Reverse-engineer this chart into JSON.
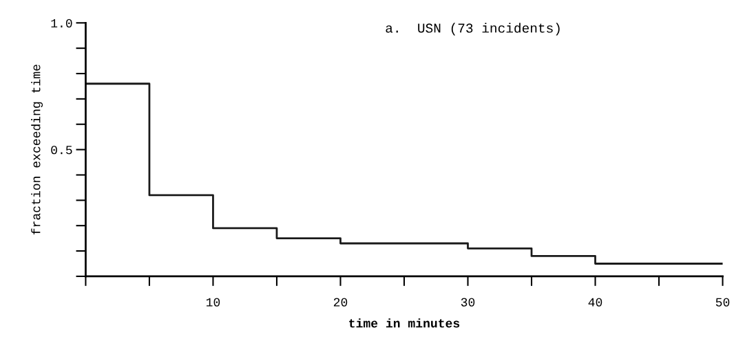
{
  "chart_data": {
    "type": "step",
    "title": "a.  USN (73 incidents)",
    "xlabel": "time in minutes",
    "ylabel": "fraction exceeding time",
    "x": [
      0,
      5,
      10,
      15,
      20,
      30,
      35,
      40,
      50
    ],
    "series": [
      {
        "color": "#1a1a1a",
        "values": [
          0.76,
          0.32,
          0.19,
          0.15,
          0.13,
          0.11,
          0.08,
          0.05,
          0.05
        ]
      }
    ],
    "xlim": [
      0,
      50
    ],
    "ylim": [
      0,
      1.0
    ],
    "xticks": [
      {
        "value": 0,
        "label": null
      },
      {
        "value": 5,
        "label": null
      },
      10,
      {
        "value": 15,
        "label": null
      },
      20,
      {
        "value": 25,
        "label": null
      },
      30,
      {
        "value": 35,
        "label": null
      },
      40,
      {
        "value": 45,
        "label": null
      },
      50
    ],
    "yticks": [
      {
        "value": 0,
        "label": null
      },
      {
        "value": 0.1,
        "label": null
      },
      {
        "value": 0.2,
        "label": null
      },
      {
        "value": 0.3,
        "label": null
      },
      {
        "value": 0.4,
        "label": null
      },
      {
        "value": 0.5,
        "label": "0.5"
      },
      {
        "value": 0.6,
        "label": null
      },
      {
        "value": 0.7,
        "label": null
      },
      {
        "value": 0.8,
        "label": null
      },
      {
        "value": 0.9,
        "label": null
      },
      {
        "value": 1.0,
        "label": "1.0"
      }
    ],
    "marker": "none",
    "line_style": "solid"
  }
}
